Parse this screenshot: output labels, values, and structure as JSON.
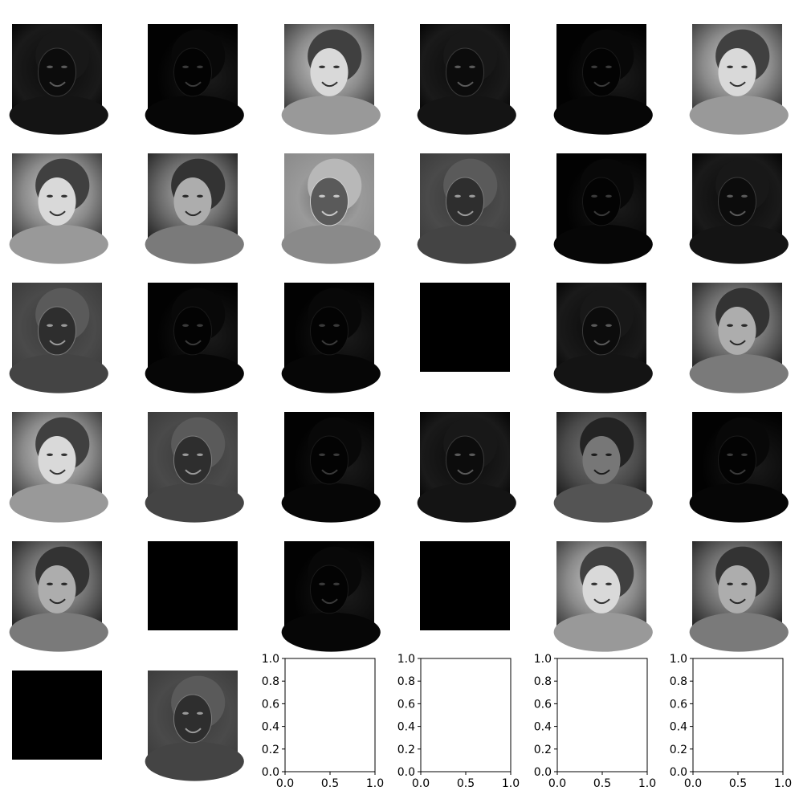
{
  "figure": {
    "grid_rows": 6,
    "grid_cols": 6,
    "background": "#ffffff"
  },
  "chart_data": {
    "type": "image-grid",
    "panels": [
      {
        "kind": "feature-map",
        "tone": "dark-outline",
        "mean_gray": 0.06
      },
      {
        "kind": "feature-map",
        "tone": "dark-sparse",
        "mean_gray": 0.04
      },
      {
        "kind": "feature-map",
        "tone": "photo-bright",
        "mean_gray": 0.55
      },
      {
        "kind": "feature-map",
        "tone": "dark-outline",
        "mean_gray": 0.08
      },
      {
        "kind": "feature-map",
        "tone": "dark-sparse",
        "mean_gray": 0.05
      },
      {
        "kind": "feature-map",
        "tone": "photo-bright",
        "mean_gray": 0.55
      },
      {
        "kind": "feature-map",
        "tone": "photo-bright",
        "mean_gray": 0.5
      },
      {
        "kind": "feature-map",
        "tone": "photo",
        "mean_gray": 0.42
      },
      {
        "kind": "feature-map",
        "tone": "inverted-light",
        "mean_gray": 0.45
      },
      {
        "kind": "feature-map",
        "tone": "mid-gray-edges",
        "mean_gray": 0.25
      },
      {
        "kind": "feature-map",
        "tone": "dark-sparse",
        "mean_gray": 0.03
      },
      {
        "kind": "feature-map",
        "tone": "dark-outline",
        "mean_gray": 0.06
      },
      {
        "kind": "feature-map",
        "tone": "mid-gray-edges",
        "mean_gray": 0.25
      },
      {
        "kind": "feature-map",
        "tone": "dark-sparse",
        "mean_gray": 0.02
      },
      {
        "kind": "feature-map",
        "tone": "dark-sparse",
        "mean_gray": 0.02
      },
      {
        "kind": "feature-map",
        "tone": "black",
        "mean_gray": 0.0
      },
      {
        "kind": "feature-map",
        "tone": "dark-outline",
        "mean_gray": 0.1
      },
      {
        "kind": "feature-map",
        "tone": "photo",
        "mean_gray": 0.4
      },
      {
        "kind": "feature-map",
        "tone": "photo-bright",
        "mean_gray": 0.5
      },
      {
        "kind": "feature-map",
        "tone": "mid-gray-edges",
        "mean_gray": 0.28
      },
      {
        "kind": "feature-map",
        "tone": "dark-sparse",
        "mean_gray": 0.02
      },
      {
        "kind": "feature-map",
        "tone": "dark-outline",
        "mean_gray": 0.15
      },
      {
        "kind": "feature-map",
        "tone": "photo-dim",
        "mean_gray": 0.3
      },
      {
        "kind": "feature-map",
        "tone": "dark-sparse",
        "mean_gray": 0.03
      },
      {
        "kind": "feature-map",
        "tone": "photo",
        "mean_gray": 0.4
      },
      {
        "kind": "feature-map",
        "tone": "black",
        "mean_gray": 0.0
      },
      {
        "kind": "feature-map",
        "tone": "dark-sparse",
        "mean_gray": 0.03
      },
      {
        "kind": "feature-map",
        "tone": "black",
        "mean_gray": 0.0
      },
      {
        "kind": "feature-map",
        "tone": "photo-bright",
        "mean_gray": 0.5
      },
      {
        "kind": "feature-map",
        "tone": "photo",
        "mean_gray": 0.42
      },
      {
        "kind": "feature-map",
        "tone": "black",
        "mean_gray": 0.0
      },
      {
        "kind": "feature-map",
        "tone": "mid-gray-edges",
        "mean_gray": 0.32
      },
      {
        "kind": "empty-axes",
        "xlim": [
          0.0,
          1.0
        ],
        "ylim": [
          0.0,
          1.0
        ],
        "xticks": [
          "0.0",
          "0.5",
          "1.0"
        ],
        "yticks": [
          "0.0",
          "0.2",
          "0.4",
          "0.6",
          "0.8",
          "1.0"
        ]
      },
      {
        "kind": "empty-axes",
        "xlim": [
          0.0,
          1.0
        ],
        "ylim": [
          0.0,
          1.0
        ],
        "xticks": [
          "0.0",
          "0.5",
          "1.0"
        ],
        "yticks": [
          "0.0",
          "0.2",
          "0.4",
          "0.6",
          "0.8",
          "1.0"
        ]
      },
      {
        "kind": "empty-axes",
        "xlim": [
          0.0,
          1.0
        ],
        "ylim": [
          0.0,
          1.0
        ],
        "xticks": [
          "0.0",
          "0.5",
          "1.0"
        ],
        "yticks": [
          "0.0",
          "0.2",
          "0.4",
          "0.6",
          "0.8",
          "1.0"
        ]
      },
      {
        "kind": "empty-axes",
        "xlim": [
          0.0,
          1.0
        ],
        "ylim": [
          0.0,
          1.0
        ],
        "xticks": [
          "0.0",
          "0.5",
          "1.0"
        ],
        "yticks": [
          "0.0",
          "0.2",
          "0.4",
          "0.6",
          "0.8",
          "1.0"
        ]
      }
    ]
  }
}
